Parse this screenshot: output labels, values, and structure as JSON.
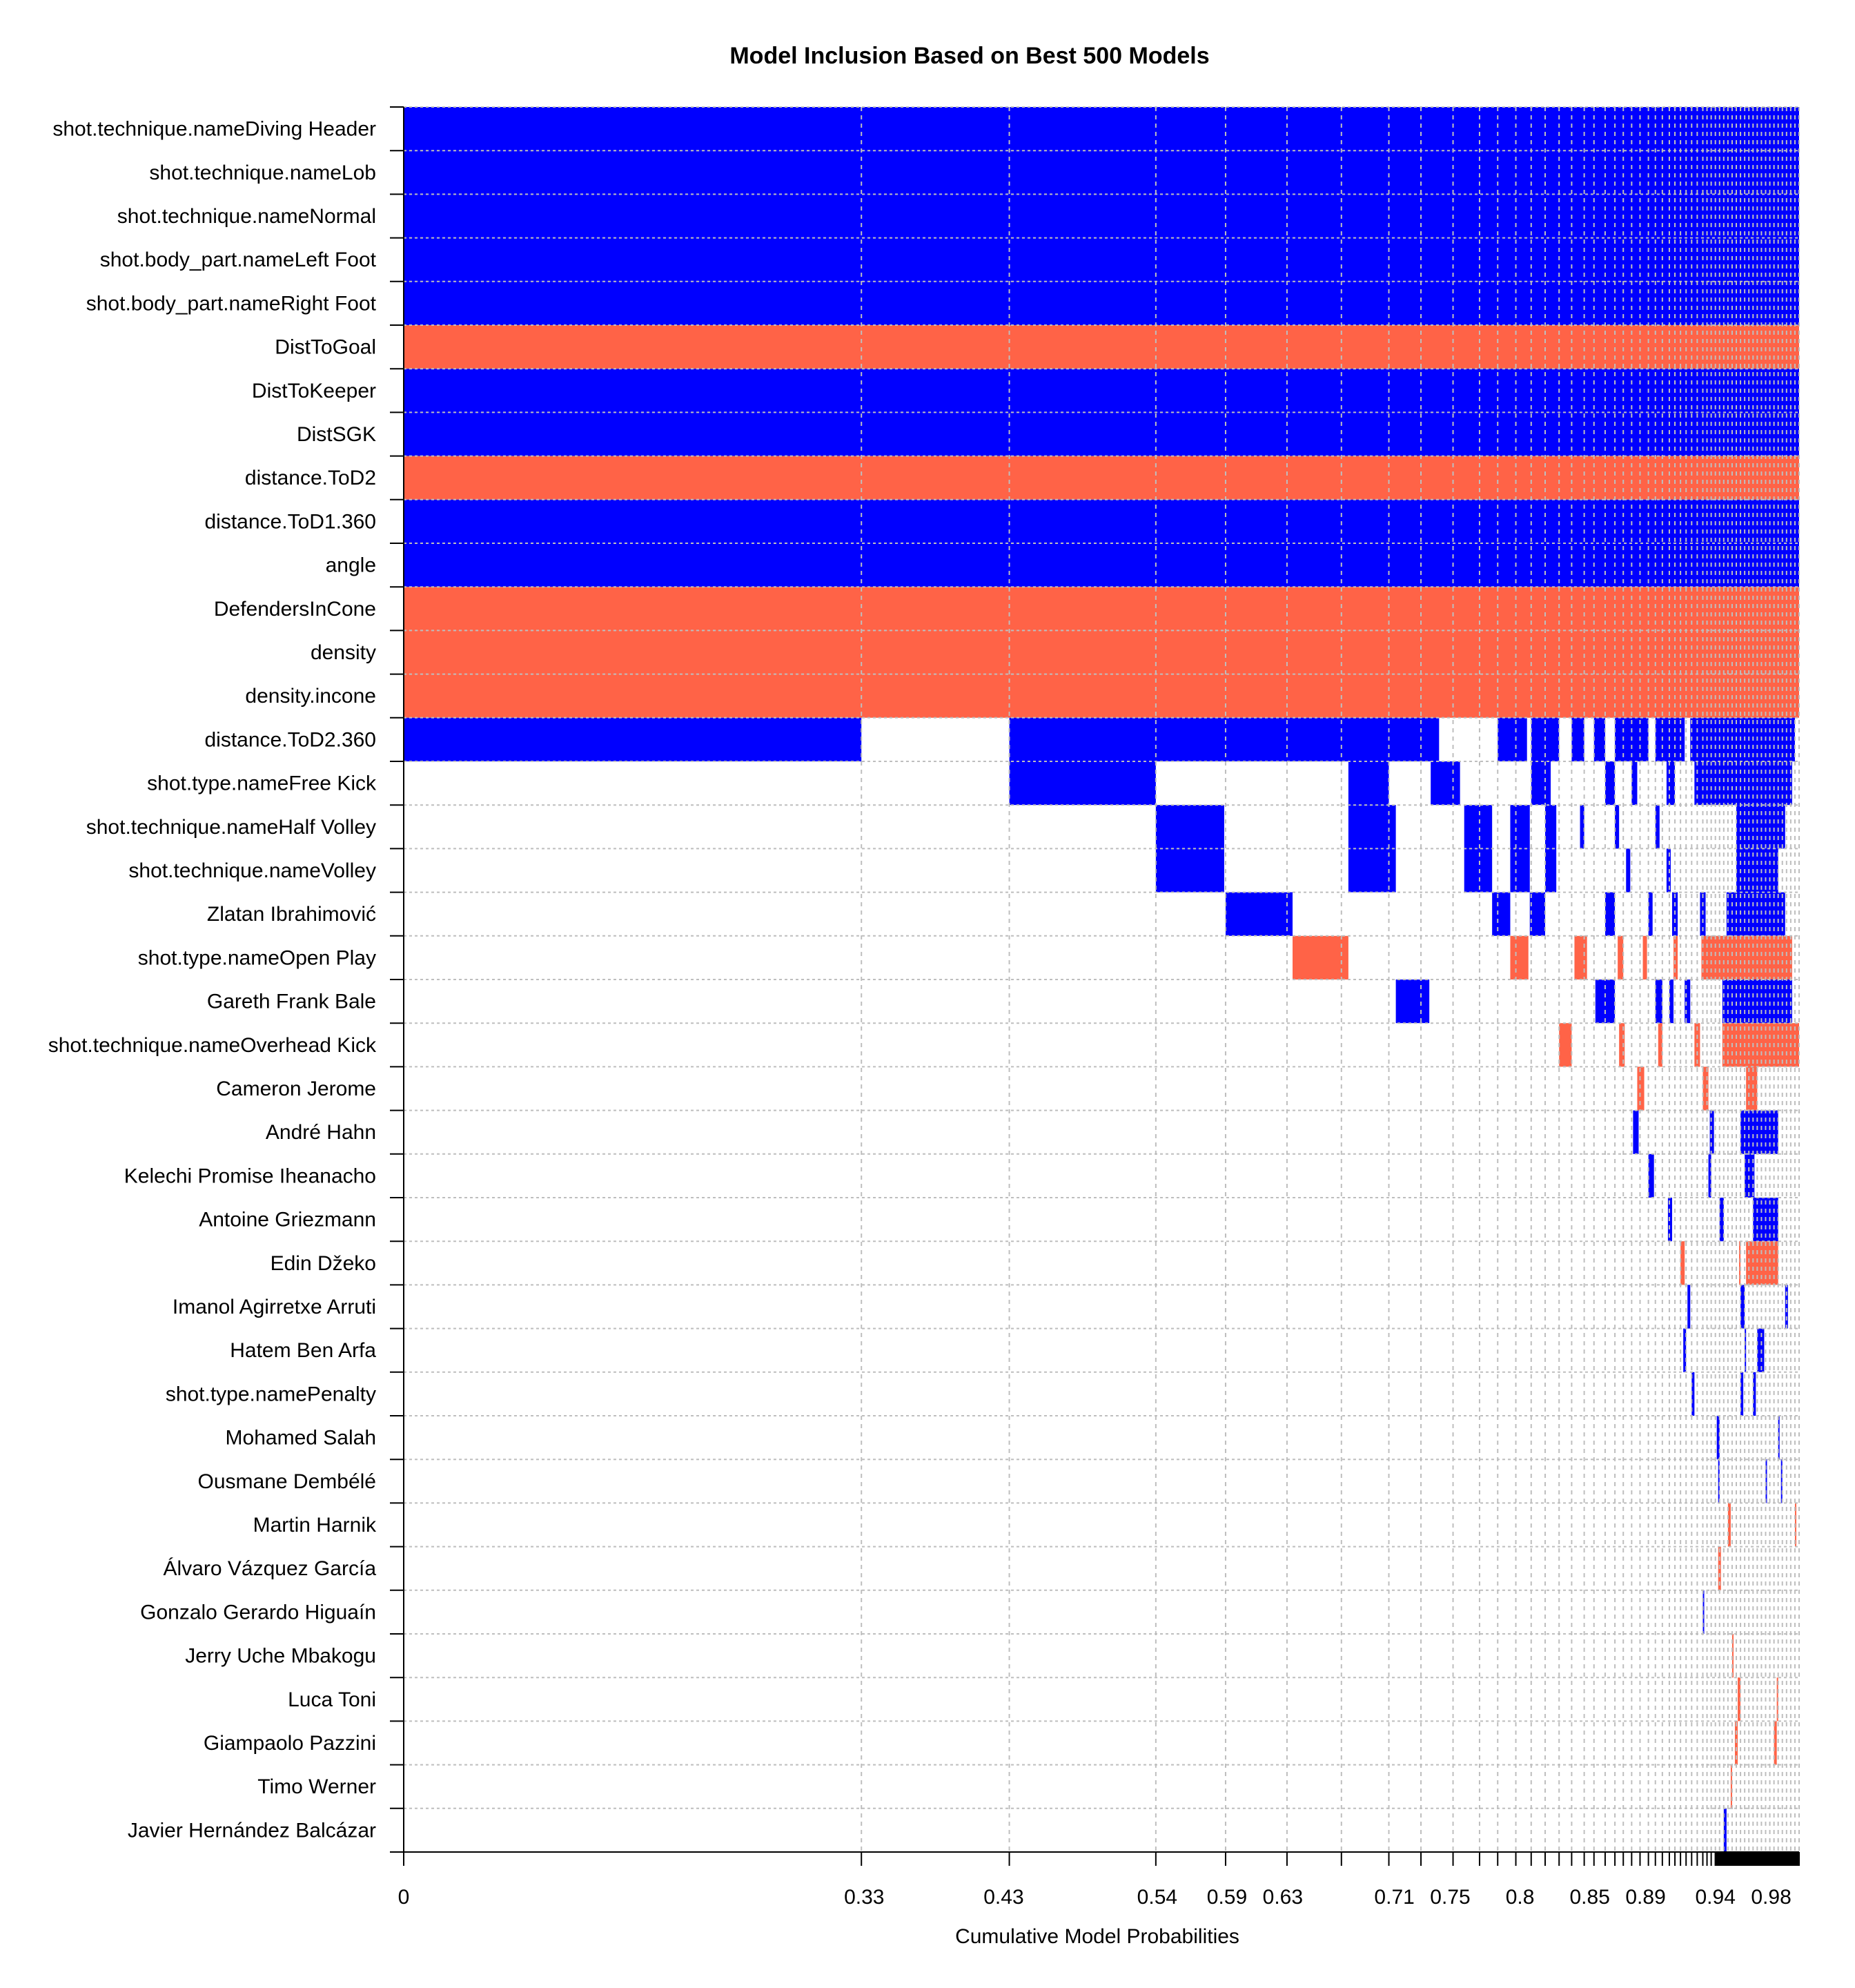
{
  "chart_data": {
    "type": "heatmap",
    "title": "Model Inclusion Based on Best  500  Models",
    "xlabel": "Cumulative Model Probabilities",
    "ylabel": "",
    "xlim": [
      0,
      1
    ],
    "grid": true,
    "colors": {
      "positive": "#0000ff",
      "negative": "#ff6347",
      "excluded": "#ffffff",
      "grid": "#bebebe"
    },
    "x_tick_labels": [
      "0",
      "0.33",
      "0.43",
      "0.54",
      "0.59",
      "0.63",
      "0.71",
      "0.75",
      "0.8",
      "0.85",
      "0.89",
      "0.94",
      "0.98"
    ],
    "x_tick_values": [
      0,
      0.33,
      0.43,
      0.54,
      0.59,
      0.63,
      0.71,
      0.75,
      0.8,
      0.85,
      0.89,
      0.94,
      0.98
    ],
    "model_boundaries": [
      0,
      0.328,
      0.434,
      0.539,
      0.589,
      0.633,
      0.672,
      0.706,
      0.729,
      0.752,
      0.771,
      0.784,
      0.797,
      0.808,
      0.818,
      0.828,
      0.837,
      0.846,
      0.853,
      0.861,
      0.868,
      0.874,
      0.88,
      0.886,
      0.892,
      0.897,
      0.902,
      0.907,
      0.911,
      0.915,
      0.919,
      0.923,
      0.927,
      0.931,
      0.934,
      0.937,
      0.94,
      0.943,
      0.946,
      0.949,
      0.952,
      0.955,
      0.958,
      0.961,
      0.964,
      0.967,
      0.97,
      0.973,
      0.976,
      0.979,
      0.982,
      0.985,
      0.988,
      0.991,
      0.994,
      0.997,
      1.0
    ],
    "variables": [
      "shot.technique.nameDiving Header",
      "shot.technique.nameLob",
      "shot.technique.nameNormal",
      "shot.body_part.nameLeft Foot",
      "shot.body_part.nameRight Foot",
      "DistToGoal",
      "DistToKeeper",
      "DistSGK",
      "distance.ToD2",
      "distance.ToD1.360",
      "angle",
      "DefendersInCone",
      "density",
      "density.incone",
      "distance.ToD2.360",
      "shot.type.nameFree Kick",
      "shot.technique.nameHalf Volley",
      "shot.technique.nameVolley",
      "Zlatan Ibrahimović",
      "shot.type.nameOpen Play",
      "Gareth Frank Bale",
      "shot.technique.nameOverhead Kick",
      "Cameron Jerome",
      "André Hahn",
      "Kelechi Promise Iheanacho",
      "Antoine Griezmann",
      "Edin Džeko",
      "Imanol Agirretxe Arruti",
      "Hatem Ben Arfa",
      "shot.type.namePenalty",
      "Mohamed Salah",
      "Ousmane Dembélé",
      "Martin Harnik",
      "Álvaro Vázquez García",
      "Gonzalo Gerardo Higuaín",
      "Jerry Uche Mbakogu",
      "Luca Toni",
      "Giampaolo Pazzini",
      "Timo Werner",
      "Javier Hernández Balcázar"
    ],
    "always_included": [
      {
        "var": 0,
        "sign": 1
      },
      {
        "var": 1,
        "sign": 1
      },
      {
        "var": 2,
        "sign": 1
      },
      {
        "var": 3,
        "sign": 1
      },
      {
        "var": 4,
        "sign": 1
      },
      {
        "var": 5,
        "sign": -1
      },
      {
        "var": 6,
        "sign": 1
      },
      {
        "var": 7,
        "sign": 1
      },
      {
        "var": 8,
        "sign": -1
      },
      {
        "var": 9,
        "sign": 1
      },
      {
        "var": 10,
        "sign": 1
      },
      {
        "var": 11,
        "sign": -1
      },
      {
        "var": 12,
        "sign": -1
      },
      {
        "var": 13,
        "sign": -1
      }
    ],
    "inclusion_blocks": [
      {
        "var": 14,
        "sign": 1,
        "from": 0,
        "to": 0.328
      },
      {
        "var": 14,
        "sign": 1,
        "from": 0.434,
        "to": 0.742
      },
      {
        "var": 14,
        "sign": 1,
        "from": 0.784,
        "to": 0.805
      },
      {
        "var": 14,
        "sign": 1,
        "from": 0.808,
        "to": 0.828
      },
      {
        "var": 14,
        "sign": 1,
        "from": 0.837,
        "to": 0.846
      },
      {
        "var": 14,
        "sign": 1,
        "from": 0.853,
        "to": 0.861
      },
      {
        "var": 14,
        "sign": 1,
        "from": 0.868,
        "to": 0.892
      },
      {
        "var": 14,
        "sign": 1,
        "from": 0.897,
        "to": 0.918
      },
      {
        "var": 14,
        "sign": 1,
        "from": 0.922,
        "to": 0.997
      },
      {
        "var": 15,
        "sign": 1,
        "from": 0.434,
        "to": 0.539
      },
      {
        "var": 15,
        "sign": 1,
        "from": 0.677,
        "to": 0.706
      },
      {
        "var": 15,
        "sign": 1,
        "from": 0.736,
        "to": 0.757
      },
      {
        "var": 15,
        "sign": 1,
        "from": 0.808,
        "to": 0.822
      },
      {
        "var": 15,
        "sign": 1,
        "from": 0.861,
        "to": 0.868
      },
      {
        "var": 15,
        "sign": 1,
        "from": 0.88,
        "to": 0.884
      },
      {
        "var": 15,
        "sign": 1,
        "from": 0.905,
        "to": 0.911
      },
      {
        "var": 15,
        "sign": 1,
        "from": 0.925,
        "to": 0.995
      },
      {
        "var": 16,
        "sign": 1,
        "from": 0.539,
        "to": 0.588
      },
      {
        "var": 16,
        "sign": 1,
        "from": 0.677,
        "to": 0.711
      },
      {
        "var": 16,
        "sign": 1,
        "from": 0.76,
        "to": 0.78
      },
      {
        "var": 16,
        "sign": 1,
        "from": 0.793,
        "to": 0.807
      },
      {
        "var": 16,
        "sign": 1,
        "from": 0.818,
        "to": 0.826
      },
      {
        "var": 16,
        "sign": 1,
        "from": 0.843,
        "to": 0.846
      },
      {
        "var": 16,
        "sign": 1,
        "from": 0.868,
        "to": 0.871
      },
      {
        "var": 16,
        "sign": 1,
        "from": 0.897,
        "to": 0.9
      },
      {
        "var": 16,
        "sign": 1,
        "from": 0.955,
        "to": 0.99
      },
      {
        "var": 17,
        "sign": 1,
        "from": 0.539,
        "to": 0.588
      },
      {
        "var": 17,
        "sign": 1,
        "from": 0.677,
        "to": 0.711
      },
      {
        "var": 17,
        "sign": 1,
        "from": 0.76,
        "to": 0.78
      },
      {
        "var": 17,
        "sign": 1,
        "from": 0.793,
        "to": 0.807
      },
      {
        "var": 17,
        "sign": 1,
        "from": 0.818,
        "to": 0.826
      },
      {
        "var": 17,
        "sign": 1,
        "from": 0.876,
        "to": 0.879
      },
      {
        "var": 17,
        "sign": 1,
        "from": 0.905,
        "to": 0.908
      },
      {
        "var": 17,
        "sign": 1,
        "from": 0.955,
        "to": 0.985
      },
      {
        "var": 18,
        "sign": 1,
        "from": 0.589,
        "to": 0.637
      },
      {
        "var": 18,
        "sign": 1,
        "from": 0.78,
        "to": 0.793
      },
      {
        "var": 18,
        "sign": 1,
        "from": 0.807,
        "to": 0.818
      },
      {
        "var": 18,
        "sign": 1,
        "from": 0.861,
        "to": 0.868
      },
      {
        "var": 18,
        "sign": 1,
        "from": 0.892,
        "to": 0.895
      },
      {
        "var": 18,
        "sign": 1,
        "from": 0.909,
        "to": 0.913
      },
      {
        "var": 18,
        "sign": 1,
        "from": 0.929,
        "to": 0.933
      },
      {
        "var": 18,
        "sign": 1,
        "from": 0.948,
        "to": 0.99
      },
      {
        "var": 19,
        "sign": -1,
        "from": 0.637,
        "to": 0.677
      },
      {
        "var": 19,
        "sign": -1,
        "from": 0.793,
        "to": 0.806
      },
      {
        "var": 19,
        "sign": -1,
        "from": 0.839,
        "to": 0.848
      },
      {
        "var": 19,
        "sign": -1,
        "from": 0.87,
        "to": 0.874
      },
      {
        "var": 19,
        "sign": -1,
        "from": 0.888,
        "to": 0.891
      },
      {
        "var": 19,
        "sign": -1,
        "from": 0.91,
        "to": 0.913
      },
      {
        "var": 19,
        "sign": -1,
        "from": 0.93,
        "to": 0.995
      },
      {
        "var": 20,
        "sign": 1,
        "from": 0.711,
        "to": 0.735
      },
      {
        "var": 20,
        "sign": 1,
        "from": 0.854,
        "to": 0.868
      },
      {
        "var": 20,
        "sign": 1,
        "from": 0.897,
        "to": 0.902
      },
      {
        "var": 20,
        "sign": 1,
        "from": 0.907,
        "to": 0.91
      },
      {
        "var": 20,
        "sign": 1,
        "from": 0.918,
        "to": 0.922
      },
      {
        "var": 20,
        "sign": 1,
        "from": 0.945,
        "to": 0.995
      },
      {
        "var": 21,
        "sign": -1,
        "from": 0.828,
        "to": 0.837
      },
      {
        "var": 21,
        "sign": -1,
        "from": 0.871,
        "to": 0.875
      },
      {
        "var": 21,
        "sign": -1,
        "from": 0.899,
        "to": 0.902
      },
      {
        "var": 21,
        "sign": -1,
        "from": 0.925,
        "to": 0.929
      },
      {
        "var": 21,
        "sign": -1,
        "from": 0.945,
        "to": 1.0
      },
      {
        "var": 22,
        "sign": -1,
        "from": 0.884,
        "to": 0.889
      },
      {
        "var": 22,
        "sign": -1,
        "from": 0.931,
        "to": 0.935
      },
      {
        "var": 22,
        "sign": -1,
        "from": 0.962,
        "to": 0.97
      },
      {
        "var": 23,
        "sign": 1,
        "from": 0.881,
        "to": 0.885
      },
      {
        "var": 23,
        "sign": 1,
        "from": 0.936,
        "to": 0.939
      },
      {
        "var": 23,
        "sign": 1,
        "from": 0.958,
        "to": 0.985
      },
      {
        "var": 24,
        "sign": 1,
        "from": 0.892,
        "to": 0.896
      },
      {
        "var": 24,
        "sign": 1,
        "from": 0.935,
        "to": 0.937
      },
      {
        "var": 24,
        "sign": 1,
        "from": 0.961,
        "to": 0.968
      },
      {
        "var": 25,
        "sign": 1,
        "from": 0.906,
        "to": 0.909
      },
      {
        "var": 25,
        "sign": 1,
        "from": 0.943,
        "to": 0.946
      },
      {
        "var": 25,
        "sign": 1,
        "from": 0.967,
        "to": 0.985
      },
      {
        "var": 26,
        "sign": -1,
        "from": 0.915,
        "to": 0.918
      },
      {
        "var": 26,
        "sign": -1,
        "from": 0.957,
        "to": 0.958
      },
      {
        "var": 26,
        "sign": -1,
        "from": 0.962,
        "to": 0.985
      },
      {
        "var": 27,
        "sign": 1,
        "from": 0.92,
        "to": 0.922
      },
      {
        "var": 27,
        "sign": 1,
        "from": 0.958,
        "to": 0.961
      },
      {
        "var": 27,
        "sign": 1,
        "from": 0.99,
        "to": 0.992
      },
      {
        "var": 28,
        "sign": 1,
        "from": 0.917,
        "to": 0.919
      },
      {
        "var": 28,
        "sign": 1,
        "from": 0.961,
        "to": 0.962
      },
      {
        "var": 28,
        "sign": 1,
        "from": 0.97,
        "to": 0.975
      },
      {
        "var": 29,
        "sign": 1,
        "from": 0.923,
        "to": 0.925
      },
      {
        "var": 29,
        "sign": 1,
        "from": 0.958,
        "to": 0.96
      },
      {
        "var": 29,
        "sign": 1,
        "from": 0.967,
        "to": 0.969
      },
      {
        "var": 30,
        "sign": 1,
        "from": 0.941,
        "to": 0.943
      },
      {
        "var": 30,
        "sign": 1,
        "from": 0.985,
        "to": 0.986
      },
      {
        "var": 31,
        "sign": 1,
        "from": 0.942,
        "to": 0.943
      },
      {
        "var": 31,
        "sign": 1,
        "from": 0.976,
        "to": 0.977
      },
      {
        "var": 31,
        "sign": 1,
        "from": 0.987,
        "to": 0.988
      },
      {
        "var": 32,
        "sign": -1,
        "from": 0.949,
        "to": 0.951
      },
      {
        "var": 32,
        "sign": -1,
        "from": 0.997,
        "to": 0.998
      },
      {
        "var": 33,
        "sign": -1,
        "from": 0.942,
        "to": 0.944
      },
      {
        "var": 34,
        "sign": 1,
        "from": 0.931,
        "to": 0.932
      },
      {
        "var": 35,
        "sign": -1,
        "from": 0.952,
        "to": 0.953
      },
      {
        "var": 36,
        "sign": -1,
        "from": 0.956,
        "to": 0.958
      },
      {
        "var": 36,
        "sign": -1,
        "from": 0.984,
        "to": 0.985
      },
      {
        "var": 37,
        "sign": -1,
        "from": 0.954,
        "to": 0.956
      },
      {
        "var": 37,
        "sign": -1,
        "from": 0.982,
        "to": 0.984
      },
      {
        "var": 38,
        "sign": -1,
        "from": 0.951,
        "to": 0.952
      },
      {
        "var": 39,
        "sign": 1,
        "from": 0.946,
        "to": 0.948
      }
    ]
  }
}
